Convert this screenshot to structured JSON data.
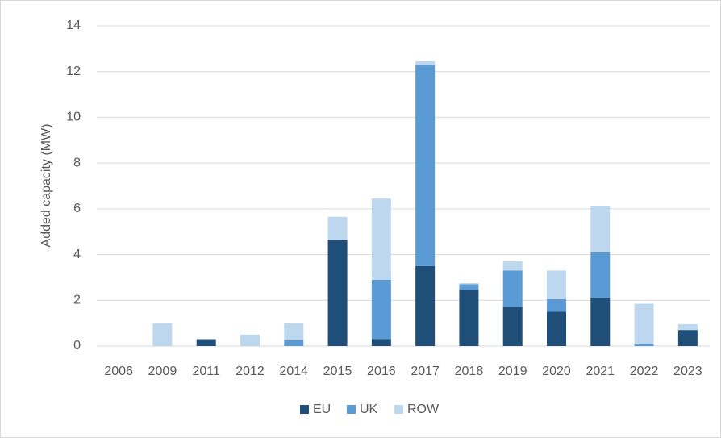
{
  "chart_data": {
    "type": "bar",
    "stacked": true,
    "y_label": "Added capacity (MW)",
    "categories": [
      "2006",
      "2009",
      "2011",
      "2012",
      "2014",
      "2015",
      "2016",
      "2017",
      "2018",
      "2019",
      "2020",
      "2021",
      "2022",
      "2023"
    ],
    "series": [
      {
        "name": "EU",
        "color": "#1f4e79",
        "values": [
          0,
          0,
          0.3,
          0,
          0,
          4.65,
          0.3,
          3.5,
          2.45,
          1.7,
          1.5,
          2.1,
          0,
          0.7
        ]
      },
      {
        "name": "UK",
        "color": "#5b9bd5",
        "values": [
          0,
          0,
          0,
          0,
          0.25,
          0,
          2.6,
          8.8,
          0.25,
          1.6,
          0.55,
          2.0,
          0.1,
          0
        ]
      },
      {
        "name": "ROW",
        "color": "#bdd7ee",
        "values": [
          0,
          1.0,
          0,
          0.5,
          0.75,
          1.0,
          3.55,
          0.15,
          0.05,
          0.4,
          1.25,
          2.0,
          1.75,
          0.25
        ]
      }
    ],
    "ylim": [
      0,
      14
    ],
    "yticks": [
      0,
      2,
      4,
      6,
      8,
      10,
      12,
      14
    ],
    "grid": true,
    "legend": "bottom"
  }
}
